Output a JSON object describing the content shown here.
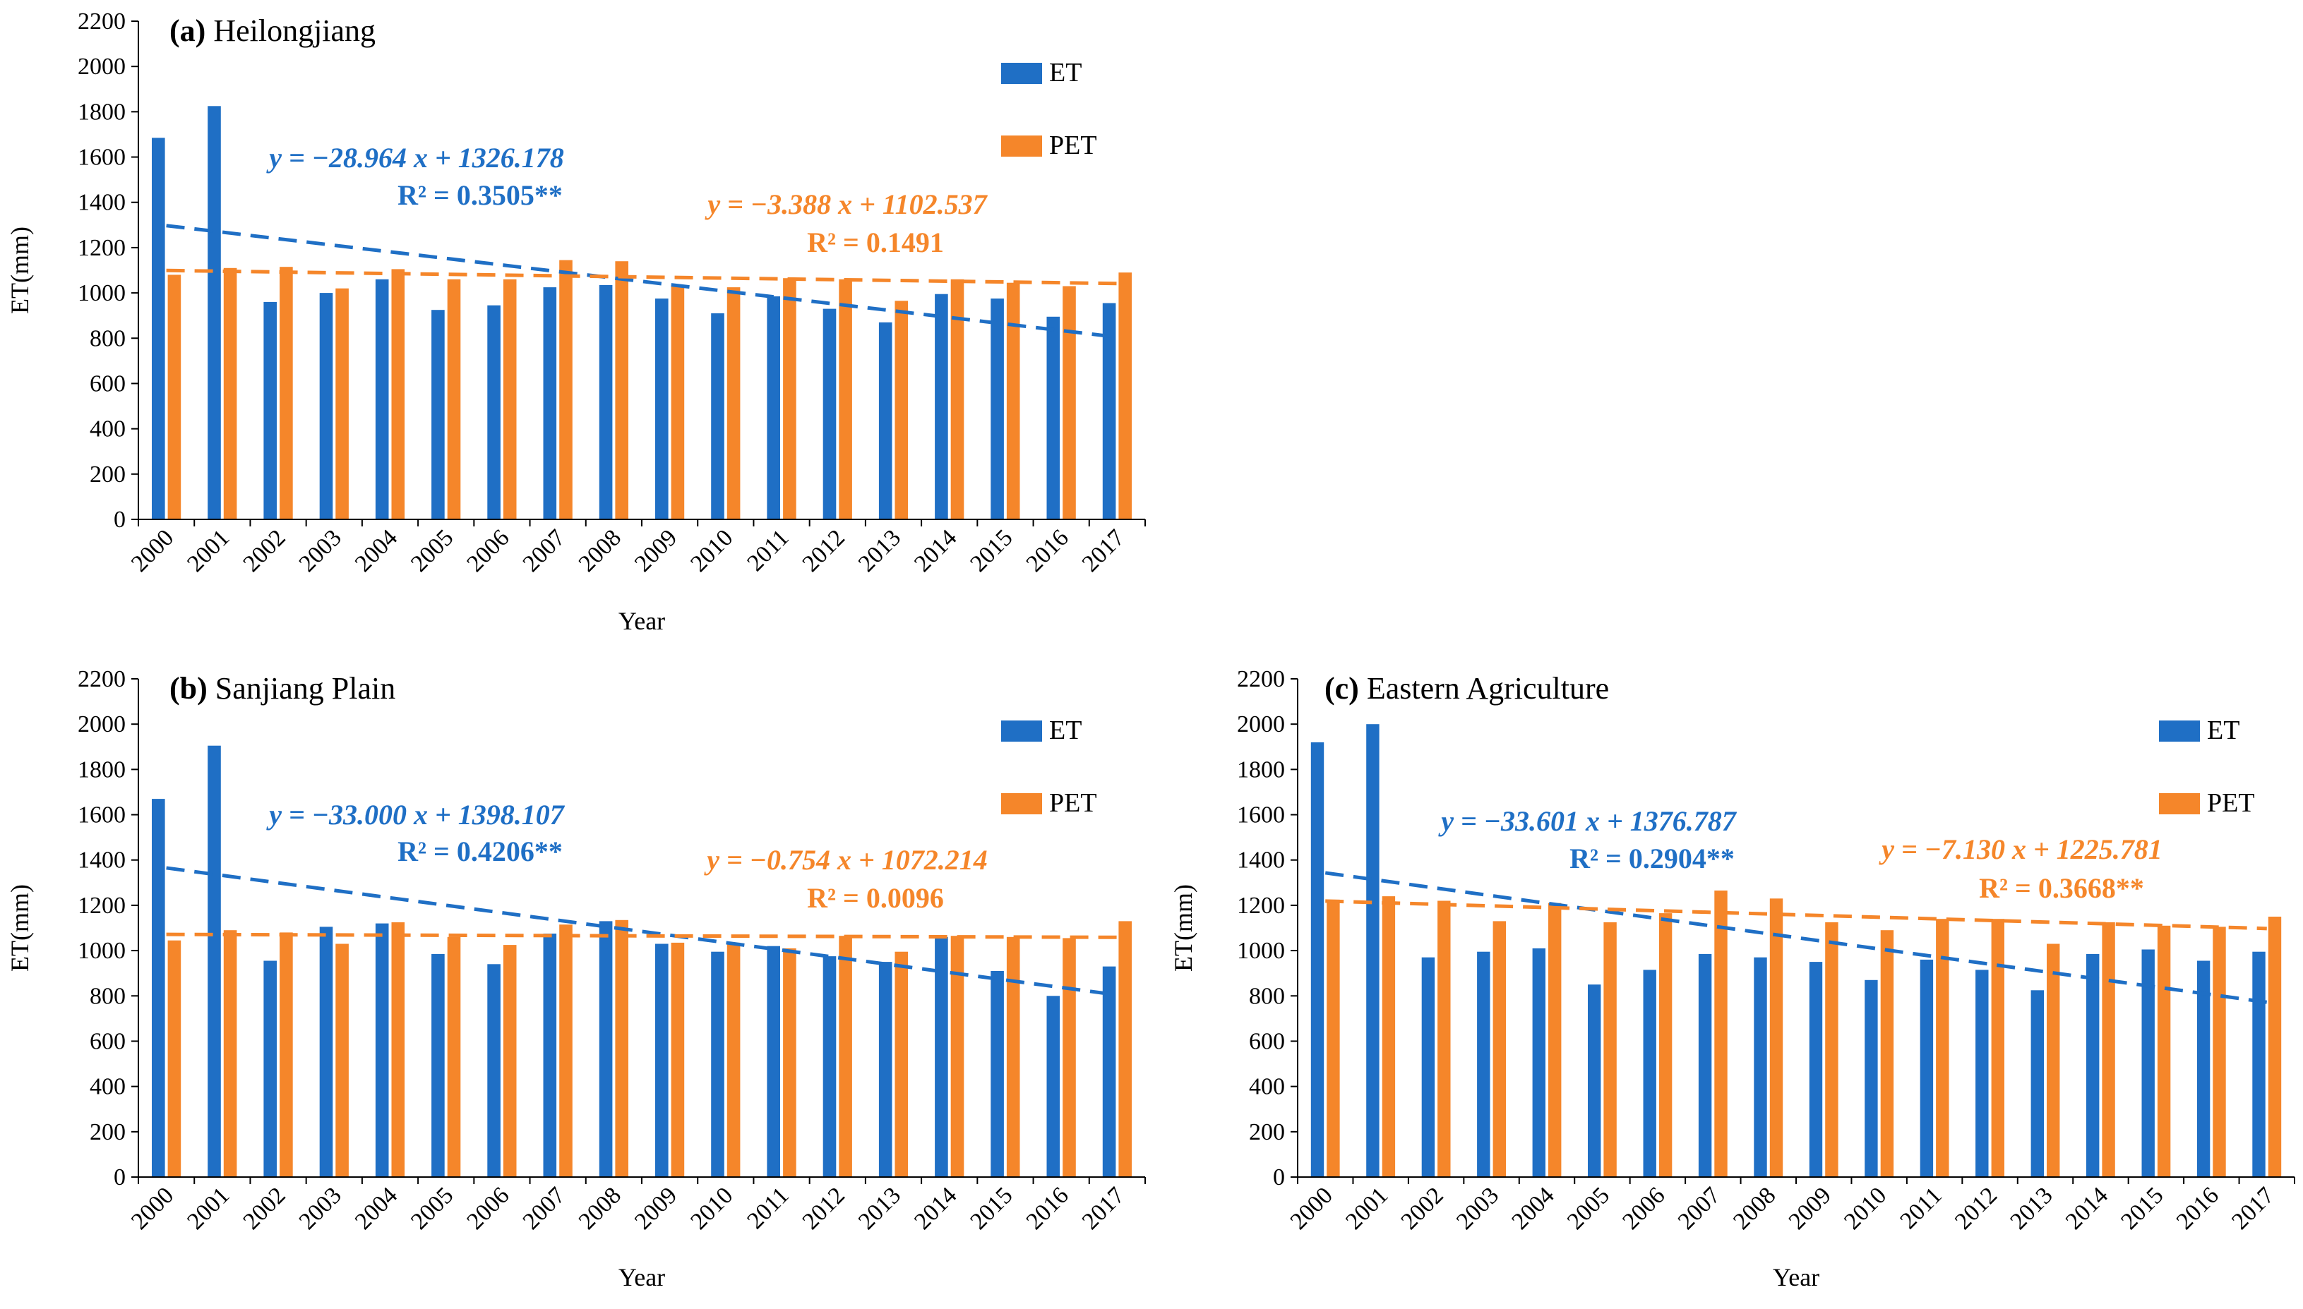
{
  "chart_data": [
    {
      "type": "bar",
      "panel_label": "(a)",
      "title": "Heilongjiang",
      "xlabel": "Year",
      "ylabel": "ET(mm)",
      "ylim": [
        0,
        2200
      ],
      "ytick_step": 200,
      "categories": [
        "2000",
        "2001",
        "2002",
        "2003",
        "2004",
        "2005",
        "2006",
        "2007",
        "2008",
        "2009",
        "2010",
        "2011",
        "2012",
        "2013",
        "2014",
        "2015",
        "2016",
        "2017"
      ],
      "series": [
        {
          "name": "ET",
          "color": "#1f6fc5",
          "values": [
            1685,
            1825,
            960,
            1000,
            1060,
            925,
            945,
            1025,
            1035,
            975,
            910,
            985,
            930,
            870,
            995,
            975,
            895,
            955
          ]
        },
        {
          "name": "PET",
          "color": "#f5862a",
          "values": [
            1080,
            1110,
            1115,
            1020,
            1105,
            1060,
            1060,
            1145,
            1140,
            1030,
            1025,
            1065,
            1060,
            965,
            1060,
            1045,
            1030,
            1090
          ]
        }
      ],
      "trendlines": [
        {
          "series": "ET",
          "slope": -28.964,
          "intercept": 1326.178,
          "equation": "y = −28.964 x + 1326.178",
          "r2": "R² = 0.3505**"
        },
        {
          "series": "PET",
          "slope": -3.388,
          "intercept": 1102.537,
          "equation": "y = −3.388 x + 1102.537",
          "r2": "R² = 0.1491"
        }
      ],
      "legend": "top-right"
    },
    {
      "type": "bar",
      "panel_label": "(b)",
      "title": "Sanjiang Plain",
      "xlabel": "Year",
      "ylabel": "ET(mm)",
      "ylim": [
        0,
        2200
      ],
      "ytick_step": 200,
      "categories": [
        "2000",
        "2001",
        "2002",
        "2003",
        "2004",
        "2005",
        "2006",
        "2007",
        "2008",
        "2009",
        "2010",
        "2011",
        "2012",
        "2013",
        "2014",
        "2015",
        "2016",
        "2017"
      ],
      "series": [
        {
          "name": "ET",
          "color": "#1f6fc5",
          "values": [
            1670,
            1905,
            955,
            1105,
            1120,
            985,
            940,
            1075,
            1130,
            1030,
            995,
            1020,
            975,
            950,
            1060,
            910,
            800,
            930
          ]
        },
        {
          "name": "PET",
          "color": "#f5862a",
          "values": [
            1045,
            1090,
            1080,
            1030,
            1125,
            1060,
            1025,
            1115,
            1135,
            1035,
            1035,
            1010,
            1065,
            995,
            1065,
            1060,
            1055,
            1130
          ]
        }
      ],
      "trendlines": [
        {
          "series": "ET",
          "slope": -33.0,
          "intercept": 1398.107,
          "equation": "y = −33.000 x + 1398.107",
          "r2": "R² = 0.4206**"
        },
        {
          "series": "PET",
          "slope": -0.754,
          "intercept": 1072.214,
          "equation": "y = −0.754 x + 1072.214",
          "r2": "R² = 0.0096"
        }
      ],
      "legend": "top-right"
    },
    {
      "type": "bar",
      "panel_label": "(c)",
      "title": "Eastern Agriculture",
      "xlabel": "Year",
      "ylabel": "ET(mm)",
      "ylim": [
        0,
        2200
      ],
      "ytick_step": 200,
      "categories": [
        "2000",
        "2001",
        "2002",
        "2003",
        "2004",
        "2005",
        "2006",
        "2007",
        "2008",
        "2009",
        "2010",
        "2011",
        "2012",
        "2013",
        "2014",
        "2015",
        "2016",
        "2017"
      ],
      "series": [
        {
          "name": "ET",
          "color": "#1f6fc5",
          "values": [
            1920,
            2000,
            970,
            995,
            1010,
            850,
            915,
            985,
            970,
            950,
            870,
            960,
            915,
            825,
            985,
            1005,
            955,
            995
          ]
        },
        {
          "name": "PET",
          "color": "#f5862a",
          "values": [
            1225,
            1240,
            1220,
            1130,
            1210,
            1125,
            1165,
            1265,
            1230,
            1125,
            1090,
            1140,
            1140,
            1030,
            1125,
            1110,
            1105,
            1150
          ]
        }
      ],
      "trendlines": [
        {
          "series": "ET",
          "slope": -33.601,
          "intercept": 1376.787,
          "equation": "y = −33.601 x + 1376.787",
          "r2": "R² = 0.2904**"
        },
        {
          "series": "PET",
          "slope": -7.13,
          "intercept": 1225.781,
          "equation": "y = −7.130 x + 1225.781",
          "r2": "R² = 0.3668**"
        }
      ],
      "legend": "top-right"
    }
  ]
}
